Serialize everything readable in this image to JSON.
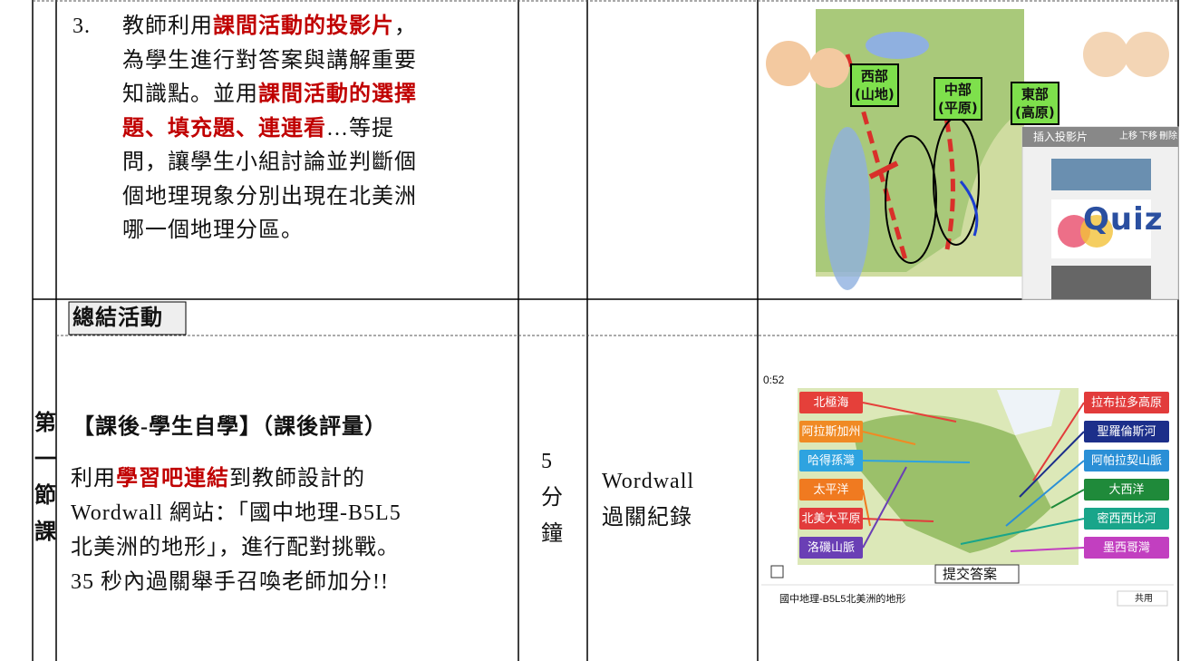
{
  "step3": {
    "number": "3.",
    "lines": [
      [
        {
          "text": "教師利用"
        },
        {
          "text": "課間活動的投影片",
          "highlight": true
        },
        {
          "text": "，"
        }
      ],
      [
        {
          "text": "為學生進行對答案與講解重要"
        }
      ],
      [
        {
          "text": "知識點。並用"
        },
        {
          "text": "課間活動的選擇",
          "highlight": true
        }
      ],
      [
        {
          "text": "題、填充題、連連看",
          "highlight": true
        },
        {
          "text": "…等提"
        }
      ],
      [
        {
          "text": "問，讓學生小組討論並判斷個"
        }
      ],
      [
        {
          "text": "個地理現象分別出現在北美洲"
        }
      ],
      [
        {
          "text": "哪一個地理分區。"
        }
      ]
    ]
  },
  "slide_image": {
    "regions": [
      {
        "name": "西部",
        "sub": "(山地)"
      },
      {
        "name": "中部",
        "sub": "(平原)"
      },
      {
        "name": "東部",
        "sub": "(高原)"
      }
    ],
    "panel_title": "插入投影片",
    "panel_buttons": [
      "上移",
      "下移",
      "刪除"
    ],
    "quiz": "Quiz"
  },
  "summary": {
    "heading": "總結活動",
    "session": [
      "第",
      "一",
      "節",
      "課"
    ],
    "title": "【課後-學生自學】（課後評量）",
    "lines": [
      [
        {
          "text": "利用"
        },
        {
          "text": "學習吧連結",
          "highlight": true
        },
        {
          "text": "到教師設計的"
        }
      ],
      [
        {
          "text": "Wordwall 網站：「國中地理-B5L5"
        }
      ],
      [
        {
          "text": "北美洲的地形」，進行配對挑戰。"
        }
      ],
      [
        {
          "text": "35 秒內過關舉手召喚老師加分!!"
        }
      ]
    ],
    "time": [
      "5",
      "分",
      "鐘"
    ],
    "resource": [
      "Wordwall",
      "過關紀錄"
    ]
  },
  "game_image": {
    "timer": "0:52",
    "left_labels": [
      {
        "text": "北極海",
        "color": "#e5403a"
      },
      {
        "text": "阿拉斯加州",
        "color": "#f08a24"
      },
      {
        "text": "哈得孫灣",
        "color": "#2ea3e0"
      },
      {
        "text": "太平洋",
        "color": "#f07a20"
      },
      {
        "text": "北美大平原",
        "color": "#e23b3b"
      },
      {
        "text": "洛磯山脈",
        "color": "#6a3fb5"
      }
    ],
    "right_labels": [
      {
        "text": "拉布拉多高原",
        "color": "#e23b3b"
      },
      {
        "text": "聖羅倫斯河",
        "color": "#1c2f8a"
      },
      {
        "text": "阿帕拉契山脈",
        "color": "#2a8fd6"
      },
      {
        "text": "大西洋",
        "color": "#1f8a3a"
      },
      {
        "text": "密西西比河",
        "color": "#19a58a"
      },
      {
        "text": "墨西哥灣",
        "color": "#c23fc0"
      }
    ],
    "submit": "提交答案",
    "game_title": "國中地理-B5L5北美洲的地形",
    "share": "共用"
  }
}
